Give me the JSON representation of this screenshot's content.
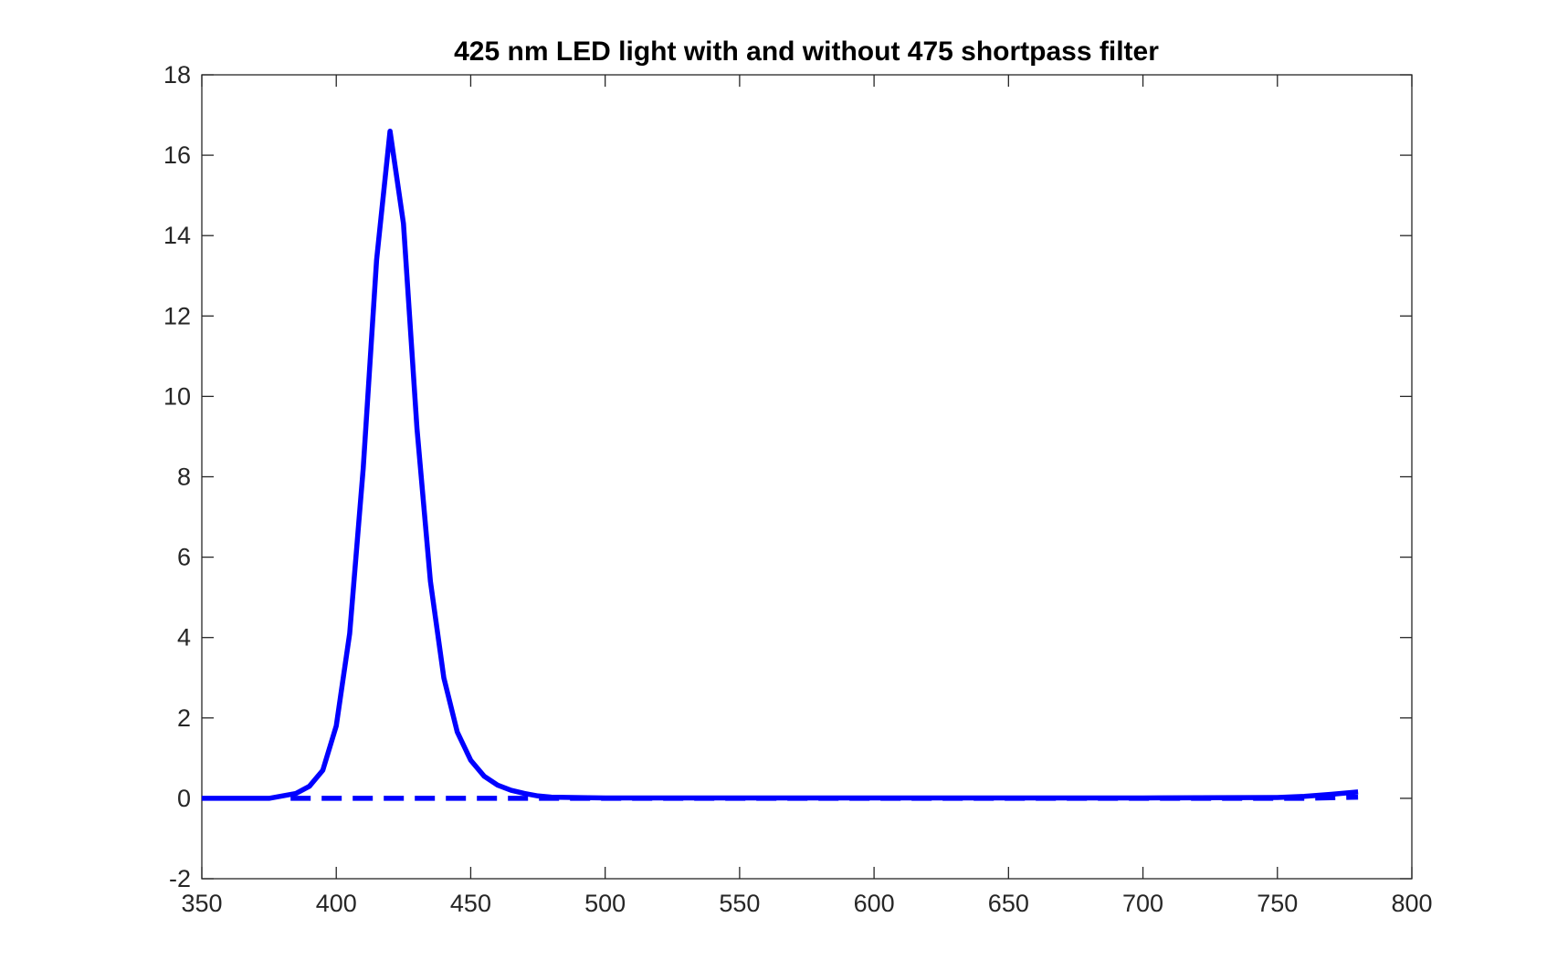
{
  "chart_data": {
    "type": "line",
    "title": "425 nm LED light with and without 475 shortpass filter",
    "xlabel": "",
    "ylabel": "",
    "xlim": [
      350,
      800
    ],
    "ylim": [
      -2,
      18
    ],
    "grid": false,
    "legend": "none",
    "x_ticks": [
      350,
      400,
      450,
      500,
      550,
      600,
      650,
      700,
      750,
      800
    ],
    "y_ticks": [
      -2,
      0,
      2,
      4,
      6,
      8,
      10,
      12,
      14,
      16,
      18
    ],
    "series": [
      {
        "style": "solid",
        "color": "#0000ff",
        "x": [
          350,
          375,
          385,
          390,
          395,
          400,
          405,
          410,
          415,
          420,
          425,
          430,
          435,
          440,
          445,
          450,
          455,
          460,
          465,
          470,
          475,
          480,
          500,
          550,
          600,
          650,
          700,
          750,
          760,
          770,
          780
        ],
        "y": [
          0,
          0,
          0.12,
          0.3,
          0.7,
          1.8,
          4.1,
          8.2,
          13.4,
          16.6,
          14.3,
          9.2,
          5.4,
          3.0,
          1.65,
          0.95,
          0.55,
          0.33,
          0.2,
          0.12,
          0.06,
          0.03,
          0.01,
          0.01,
          0.01,
          0.01,
          0.01,
          0.02,
          0.05,
          0.1,
          0.16
        ]
      },
      {
        "style": "dashed",
        "color": "#0000ff",
        "x": [
          383,
          475,
          760,
          780
        ],
        "y": [
          0,
          0,
          0,
          0.03
        ]
      }
    ]
  }
}
